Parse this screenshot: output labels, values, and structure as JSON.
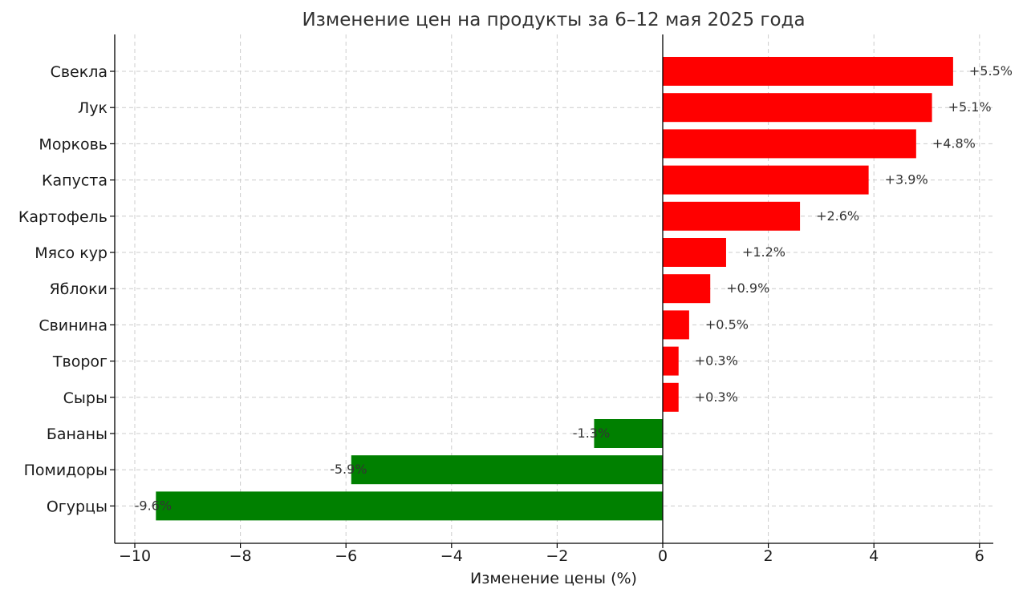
{
  "chart_data": {
    "type": "bar",
    "orientation": "horizontal",
    "title": "Изменение цен на продукты за 6–12 мая 2025 года",
    "xlabel": "Изменение цены (%)",
    "ylabel": "",
    "xlim": [
      -10.5,
      6.3
    ],
    "xticks": [
      -10,
      -8,
      -6,
      -4,
      -2,
      0,
      2,
      4,
      6
    ],
    "xtick_labels": [
      "−10",
      "−8",
      "−6",
      "−4",
      "−2",
      "0",
      "2",
      "4",
      "6"
    ],
    "grid": true,
    "categories": [
      "Свекла",
      "Лук",
      "Морковь",
      "Капуста",
      "Картофель",
      "Мясо кур",
      "Яблоки",
      "Свинина",
      "Творог",
      "Сыры",
      "Бананы",
      "Помидоры",
      "Огурцы"
    ],
    "values": [
      5.5,
      5.1,
      4.8,
      3.9,
      2.6,
      1.2,
      0.9,
      0.5,
      0.3,
      0.3,
      -1.3,
      -5.9,
      -9.6
    ],
    "value_labels": [
      "+5.5%",
      "+5.1%",
      "+4.8%",
      "+3.9%",
      "+2.6%",
      "+1.2%",
      "+0.9%",
      "+0.5%",
      "+0.3%",
      "+0.3%",
      "-1.3%",
      "-5.9%",
      "-9.6%"
    ],
    "colors": {
      "positive": "#ff0000",
      "negative": "#008000",
      "axis": "#000000",
      "zero_line": "#000000"
    }
  }
}
